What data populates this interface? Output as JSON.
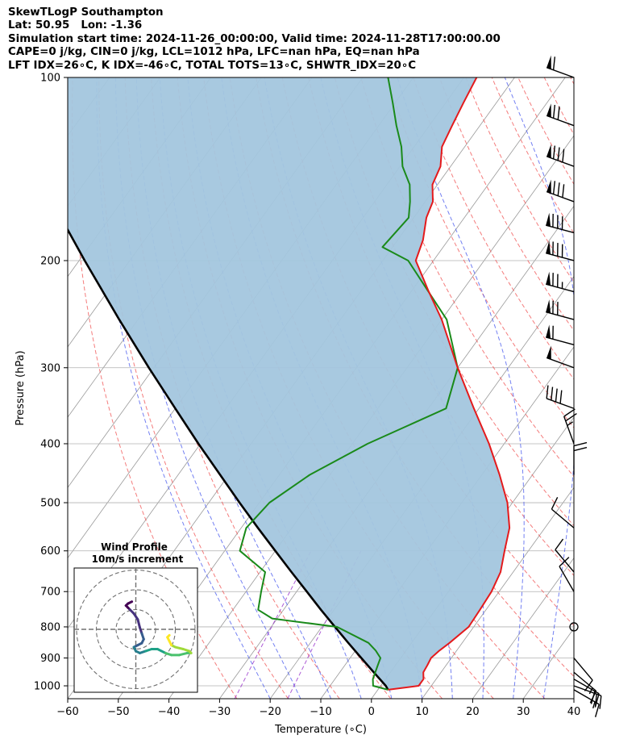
{
  "header": {
    "line1": "SkewTLogP Southampton",
    "line2": "Lat: 50.95   Lon: -1.36",
    "line3": "Simulation start time: 2024-11-26_00:00:00, Valid time: 2024-11-28T17:00:00.00",
    "line4": "CAPE=0 j/kg, CIN=0 j/kg, LCL=1012 hPa, LFC=nan hPa, EQ=nan hPa",
    "line5": "LFT IDX=26∘C, K IDX=-46∘C, TOTAL TOTS=13∘C, SHWTR_IDX=20∘C"
  },
  "chart_data": {
    "type": "skew-t log-p",
    "xlabel": "Temperature (∘C)",
    "ylabel": "Pressure (hPa)",
    "xlim": [
      -60,
      40
    ],
    "ylim": [
      1050,
      100
    ],
    "x_ticks": [
      "−60",
      "−50",
      "−40",
      "−30",
      "−20",
      "−10",
      "0",
      "10",
      "20",
      "30",
      "40"
    ],
    "x_tick_values": [
      -60,
      -50,
      -40,
      -30,
      -20,
      -10,
      0,
      10,
      20,
      30,
      40
    ],
    "y_ticks": [
      "1000",
      "900",
      "800",
      "700",
      "600",
      "500",
      "400",
      "300",
      "200",
      "100"
    ],
    "y_tick_values": [
      1000,
      900,
      800,
      700,
      600,
      500,
      400,
      300,
      200,
      100
    ],
    "grid": true,
    "colors": {
      "temperature": "#e41a1c",
      "dewpoint": "#1a8a1a",
      "parcel": "#000000",
      "cape_fill": "#a3c6de",
      "dry_adiabats": "#f05050",
      "moist_adiabats": "#4455ee",
      "mixing_ratio": "#9933cc",
      "isotherms": "#999999"
    },
    "series": [
      {
        "name": "",
        "role": "temperature",
        "p": [
          1015,
          1000,
          975,
          950,
          925,
          900,
          875,
          850,
          800,
          750,
          700,
          650,
          600,
          550,
          500,
          450,
          400,
          350,
          300,
          250,
          225,
          200,
          185,
          170,
          160,
          150,
          140,
          130,
          120,
          110,
          100
        ],
        "t": [
          2,
          7.5,
          7.5,
          6.5,
          6.3,
          6.0,
          6.6,
          7.5,
          9.0,
          8.8,
          8.5,
          7.5,
          5.3,
          3.0,
          -1.0,
          -6.5,
          -13.0,
          -21.0,
          -30.0,
          -40.0,
          -46.5,
          -53.5,
          -55.0,
          -57.5,
          -58.5,
          -61.0,
          -62.0,
          -64.5,
          -65.5,
          -66.5,
          -67.5
        ]
      },
      {
        "name": "",
        "role": "dewpoint",
        "p": [
          1015,
          1000,
          975,
          950,
          925,
          900,
          875,
          850,
          800,
          775,
          750,
          700,
          650,
          600,
          550,
          500,
          450,
          400,
          350,
          300,
          250,
          200,
          190,
          170,
          160,
          150,
          140,
          130,
          120,
          110,
          100
        ],
        "t": [
          2,
          -1.5,
          -2.5,
          -3.0,
          -3.5,
          -4.0,
          -6.0,
          -8.5,
          -17.0,
          -31.0,
          -35.0,
          -37.0,
          -39.0,
          -47.0,
          -49.0,
          -48.0,
          -44.0,
          -37.0,
          -26.5,
          -30.0,
          -39.0,
          -55.0,
          -62.0,
          -61.0,
          -63.0,
          -65.5,
          -69.5,
          -72.5,
          -76.5,
          -80.5,
          -85.0
        ]
      },
      {
        "name": "",
        "role": "parcel",
        "p": [
          1015,
          1000,
          950,
          900,
          850,
          800,
          750,
          700,
          650,
          600,
          550,
          500,
          450,
          400,
          350,
          300,
          250,
          200,
          150,
          100
        ],
        "t": [
          2,
          1.0,
          -3.3,
          -7.8,
          -12.5,
          -17.4,
          -22.6,
          -28.0,
          -33.8,
          -40.0,
          -46.7,
          -53.9,
          -61.7,
          -70.4,
          -80.0,
          -91.0,
          -103.7,
          -118.9,
          -138.0,
          -164.5
        ]
      }
    ],
    "wind_barbs": [
      {
        "p": 100,
        "speed_kt": 60,
        "dir_deg": 290
      },
      {
        "p": 120,
        "speed_kt": 70,
        "dir_deg": 290
      },
      {
        "p": 140,
        "speed_kt": 80,
        "dir_deg": 290
      },
      {
        "p": 160,
        "speed_kt": 80,
        "dir_deg": 290
      },
      {
        "p": 180,
        "speed_kt": 80,
        "dir_deg": 285
      },
      {
        "p": 200,
        "speed_kt": 80,
        "dir_deg": 285
      },
      {
        "p": 225,
        "speed_kt": 75,
        "dir_deg": 285
      },
      {
        "p": 250,
        "speed_kt": 70,
        "dir_deg": 285
      },
      {
        "p": 275,
        "speed_kt": 60,
        "dir_deg": 285
      },
      {
        "p": 300,
        "speed_kt": 50,
        "dir_deg": 290
      },
      {
        "p": 350,
        "speed_kt": 40,
        "dir_deg": 290
      },
      {
        "p": 400,
        "speed_kt": 25,
        "dir_deg": 340
      },
      {
        "p": 450,
        "speed_kt": 20,
        "dir_deg": 0
      },
      {
        "p": 550,
        "speed_kt": 10,
        "dir_deg": 310
      },
      {
        "p": 650,
        "speed_kt": 10,
        "dir_deg": 320
      },
      {
        "p": 700,
        "speed_kt": 10,
        "dir_deg": 330
      },
      {
        "p": 800,
        "speed_kt": 0,
        "dir_deg": 0
      },
      {
        "p": 900,
        "speed_kt": 10,
        "dir_deg": 140
      },
      {
        "p": 950,
        "speed_kt": 15,
        "dir_deg": 130
      },
      {
        "p": 975,
        "speed_kt": 20,
        "dir_deg": 120
      },
      {
        "p": 1000,
        "speed_kt": 20,
        "dir_deg": 110
      },
      {
        "p": 1015,
        "speed_kt": 15,
        "dir_deg": 120
      }
    ],
    "inset": {
      "title": "Wind Profile",
      "subtitle": "10m/s increment",
      "rings_ms": [
        10,
        20,
        30
      ],
      "hodograph_uv": [
        [
          -2,
          14
        ],
        [
          -4,
          13
        ],
        [
          -5,
          12
        ],
        [
          -4,
          11
        ],
        [
          -3,
          10
        ],
        [
          -1,
          8
        ],
        [
          1,
          5
        ],
        [
          2,
          1
        ],
        [
          3,
          -2
        ],
        [
          4,
          -5
        ],
        [
          3,
          -7
        ],
        [
          1,
          -8
        ],
        [
          -1,
          -9
        ],
        [
          0,
          -11
        ],
        [
          2,
          -12
        ],
        [
          5,
          -11
        ],
        [
          8,
          -10
        ],
        [
          11,
          -10
        ],
        [
          13,
          -11
        ],
        [
          15,
          -12
        ],
        [
          18,
          -13
        ],
        [
          22,
          -13
        ],
        [
          26,
          -12
        ],
        [
          28,
          -12
        ],
        [
          27,
          -11
        ],
        [
          24,
          -10
        ],
        [
          20,
          -9
        ],
        [
          18,
          -8
        ],
        [
          17,
          -6
        ],
        [
          16,
          -4
        ],
        [
          17,
          -3
        ]
      ]
    }
  }
}
